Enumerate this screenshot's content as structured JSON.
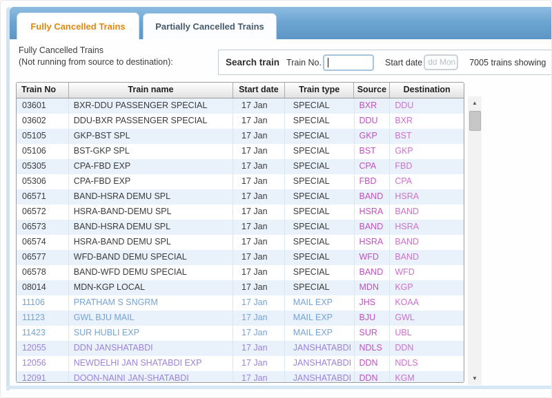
{
  "tabs": [
    {
      "label": "Fully Cancelled Trains",
      "active": true
    },
    {
      "label": "Partially Cancelled Trains",
      "active": false
    }
  ],
  "header": {
    "title_line1": "Fully Cancelled Trains",
    "title_line2": "(Not running from source to destination):"
  },
  "search": {
    "label": "Search train",
    "train_no_label": "Train No.",
    "train_no_value": "",
    "start_date_label": "Start date",
    "start_date_placeholder": "dd Mon",
    "count_text": "7005 trains showing"
  },
  "table": {
    "columns": [
      "Train No",
      "Train name",
      "Start date",
      "Train type",
      "Source",
      "Destination"
    ],
    "rows": [
      {
        "no": "03601",
        "name": "BXR-DDU PASSENGER SPECIAL",
        "date": "17 Jan",
        "type": "SPECIAL",
        "source": "BXR",
        "destination": "DDU",
        "group": "special"
      },
      {
        "no": "03602",
        "name": "DDU-BXR PASSENGER SPECIAL",
        "date": "17 Jan",
        "type": "SPECIAL",
        "source": "DDU",
        "destination": "BXR",
        "group": "special"
      },
      {
        "no": "05105",
        "name": "GKP-BST SPL",
        "date": "17 Jan",
        "type": "SPECIAL",
        "source": "GKP",
        "destination": "BST",
        "group": "special"
      },
      {
        "no": "05106",
        "name": "BST-GKP SPL",
        "date": "17 Jan",
        "type": "SPECIAL",
        "source": "BST",
        "destination": "GKP",
        "group": "special"
      },
      {
        "no": "05305",
        "name": "CPA-FBD EXP",
        "date": "17 Jan",
        "type": "SPECIAL",
        "source": "CPA",
        "destination": "FBD",
        "group": "special"
      },
      {
        "no": "05306",
        "name": "CPA-FBD EXP",
        "date": "17 Jan",
        "type": "SPECIAL",
        "source": "FBD",
        "destination": "CPA",
        "group": "special"
      },
      {
        "no": "06571",
        "name": "BAND-HSRA DEMU SPL",
        "date": "17 Jan",
        "type": "SPECIAL",
        "source": "BAND",
        "destination": "HSRA",
        "group": "special"
      },
      {
        "no": "06572",
        "name": "HSRA-BAND-DEMU SPL",
        "date": "17 Jan",
        "type": "SPECIAL",
        "source": "HSRA",
        "destination": "BAND",
        "group": "special"
      },
      {
        "no": "06573",
        "name": "BAND-HSRA DEMU SPL",
        "date": "17 Jan",
        "type": "SPECIAL",
        "source": "BAND",
        "destination": "HSRA",
        "group": "special"
      },
      {
        "no": "06574",
        "name": "HSRA-BAND DEMU SPL",
        "date": "17 Jan",
        "type": "SPECIAL",
        "source": "HSRA",
        "destination": "BAND",
        "group": "special"
      },
      {
        "no": "06577",
        "name": "WFD-BAND DEMU SPECIAL",
        "date": "17 Jan",
        "type": "SPECIAL",
        "source": "WFD",
        "destination": "BAND",
        "group": "special"
      },
      {
        "no": "06578",
        "name": "BAND-WFD DEMU SPECIAL",
        "date": "17 Jan",
        "type": "SPECIAL",
        "source": "BAND",
        "destination": "WFD",
        "group": "special"
      },
      {
        "no": "08014",
        "name": "MDN-KGP LOCAL",
        "date": "17 Jan",
        "type": "SPECIAL",
        "source": "MDN",
        "destination": "KGP",
        "group": "special"
      },
      {
        "no": "11106",
        "name": "PRATHAM S SNGRM",
        "date": "17 Jan",
        "type": "MAIL EXP",
        "source": "JHS",
        "destination": "KOAA",
        "group": "mail"
      },
      {
        "no": "11123",
        "name": "GWL BJU MAIL",
        "date": "17 Jan",
        "type": "MAIL EXP",
        "source": "BJU",
        "destination": "GWL",
        "group": "mail"
      },
      {
        "no": "11423",
        "name": "SUR HUBLI EXP",
        "date": "17 Jan",
        "type": "MAIL EXP",
        "source": "SUR",
        "destination": "UBL",
        "group": "mail"
      },
      {
        "no": "12055",
        "name": "DDN JANSHATABDI",
        "date": "17 Jan",
        "type": "JANSHATABDI",
        "source": "NDLS",
        "destination": "DDN",
        "group": "shatabdi"
      },
      {
        "no": "12056",
        "name": "NEWDELHI JAN SHATABDI EXP",
        "date": "17 Jan",
        "type": "JANSHATABDI",
        "source": "DDN",
        "destination": "NDLS",
        "group": "shatabdi"
      },
      {
        "no": "12091",
        "name": "DOON-NAINI JAN-SHATABDI",
        "date": "17 Jan",
        "type": "JANSHATABDI",
        "source": "DDN",
        "destination": "KGM",
        "group": "shatabdi"
      }
    ]
  },
  "colors": {
    "tab_active_text": "#e0870f",
    "tab_inactive_text": "#47596d",
    "group_text": {
      "special": "#3b3b3b",
      "mail": "#74a3d6",
      "shatabdi": "#9c82d8"
    },
    "source_text": "#c24fc2",
    "destination_text": "#cf6fcf",
    "row_alt_bg": "#e9f2fb"
  }
}
